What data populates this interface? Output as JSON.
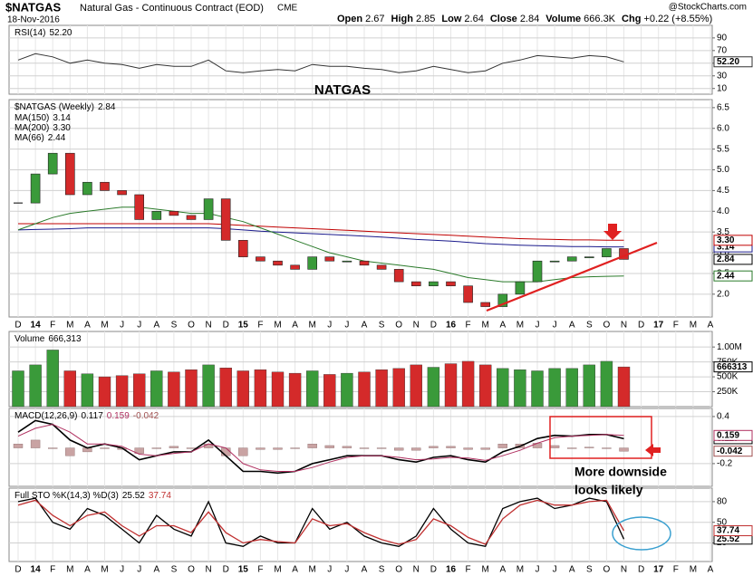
{
  "header": {
    "symbol": "$NATGAS",
    "name": "Natural Gas - Continuous Contract (EOD)",
    "exchange": "CME",
    "date": "18-Nov-2016",
    "source": "@StockCharts.com",
    "quote": [
      {
        "label": "Open",
        "value": 2.67
      },
      {
        "label": "High",
        "value": 2.85
      },
      {
        "label": "Low",
        "value": 2.64
      },
      {
        "label": "Close",
        "value": 2.84
      },
      {
        "label": "Volume",
        "value": "666.3K"
      },
      {
        "label": "Chg",
        "value": "+0.22 (+8.55%)"
      }
    ]
  },
  "annotations": [
    "NATGAS",
    "More downside",
    "looks likely"
  ],
  "chart_data": [
    {
      "type": "line",
      "label": "RSI(14)",
      "last_label": "52.20",
      "color": "#333333",
      "values": [
        55,
        65,
        60,
        50,
        55,
        50,
        48,
        42,
        48,
        45,
        45,
        55,
        38,
        35,
        38,
        40,
        38,
        48,
        45,
        45,
        42,
        40,
        35,
        38,
        45,
        40,
        35,
        38,
        50,
        55,
        62,
        60,
        58,
        62,
        60,
        52.2,
        null,
        null,
        null,
        null,
        null
      ],
      "ylim": [
        1,
        107
      ],
      "yticks": [
        90,
        70,
        50,
        30,
        10
      ],
      "grid": true
    },
    {
      "type": "candlestick",
      "label": "$NATGAS (Weekly)",
      "last_label": "2.84",
      "up_color": "#3a9a3a",
      "down_color": "#d42a2a",
      "categories": [
        "D",
        "14",
        "F",
        "M",
        "A",
        "M",
        "J",
        "J",
        "A",
        "S",
        "O",
        "N",
        "D",
        "15",
        "F",
        "M",
        "A",
        "M",
        "J",
        "J",
        "A",
        "S",
        "O",
        "N",
        "D",
        "16",
        "F",
        "M",
        "A",
        "M",
        "J",
        "J",
        "A",
        "S",
        "O",
        "N",
        "D",
        "17",
        "F",
        "M",
        "A"
      ],
      "values": [
        4.2,
        4.9,
        5.4,
        4.4,
        4.7,
        4.5,
        4.4,
        3.8,
        4.0,
        3.9,
        3.8,
        4.3,
        3.3,
        2.9,
        2.8,
        2.7,
        2.6,
        2.9,
        2.8,
        2.8,
        2.7,
        2.6,
        2.3,
        2.2,
        2.3,
        2.2,
        1.8,
        1.7,
        2.0,
        2.3,
        2.8,
        2.8,
        2.9,
        2.9,
        3.1,
        2.84,
        null,
        null,
        null,
        null,
        null
      ],
      "series": [
        {
          "name": "MA(150)",
          "color": "#1a1a8c",
          "last_label": "3.14",
          "values": [
            3.55,
            3.56,
            3.57,
            3.58,
            3.6,
            3.6,
            3.6,
            3.6,
            3.6,
            3.6,
            3.6,
            3.6,
            3.58,
            3.55,
            3.52,
            3.5,
            3.48,
            3.46,
            3.44,
            3.42,
            3.4,
            3.38,
            3.35,
            3.32,
            3.3,
            3.28,
            3.25,
            3.22,
            3.2,
            3.18,
            3.17,
            3.16,
            3.15,
            3.15,
            3.14,
            3.14,
            null,
            null,
            null,
            null,
            null
          ]
        },
        {
          "name": "MA(200)",
          "color": "#c00000",
          "last_label": "3.30",
          "values": [
            3.7,
            3.7,
            3.7,
            3.7,
            3.7,
            3.7,
            3.7,
            3.7,
            3.7,
            3.7,
            3.7,
            3.7,
            3.68,
            3.66,
            3.64,
            3.62,
            3.6,
            3.58,
            3.56,
            3.54,
            3.52,
            3.5,
            3.48,
            3.46,
            3.44,
            3.42,
            3.4,
            3.38,
            3.36,
            3.34,
            3.33,
            3.32,
            3.31,
            3.31,
            3.3,
            3.3,
            null,
            null,
            null,
            null,
            null
          ]
        },
        {
          "name": "MA(66)",
          "color": "#2a7a2a",
          "last_label": "2.44",
          "values": [
            3.55,
            3.7,
            3.85,
            3.95,
            4.0,
            4.05,
            4.1,
            4.1,
            4.05,
            4.0,
            3.95,
            3.95,
            3.85,
            3.75,
            3.6,
            3.45,
            3.3,
            3.15,
            3.0,
            2.9,
            2.8,
            2.75,
            2.7,
            2.65,
            2.6,
            2.5,
            2.4,
            2.35,
            2.3,
            2.3,
            2.3,
            2.35,
            2.4,
            2.42,
            2.43,
            2.44,
            null,
            null,
            null,
            null,
            null
          ]
        }
      ],
      "ylim": [
        1.45,
        6.65
      ],
      "yticks": [
        6.5,
        {
          "value": 6,
          "label": "6.0"
        },
        5.5,
        {
          "value": 5,
          "label": "5.0"
        },
        4.5,
        {
          "value": 4,
          "label": "4.0"
        },
        3.5,
        {
          "value": 3,
          "label": "3.0"
        },
        2.5,
        {
          "value": 2,
          "label": "2.0"
        }
      ],
      "grid": true
    },
    {
      "type": "bar",
      "label": "Volume",
      "last_label": "666,313",
      "axis_last_label": "666313",
      "values": [
        600000,
        700000,
        950000,
        600000,
        550000,
        500000,
        520000,
        550000,
        600000,
        580000,
        620000,
        700000,
        650000,
        600000,
        620000,
        580000,
        560000,
        600000,
        540000,
        560000,
        580000,
        620000,
        640000,
        700000,
        660000,
        720000,
        760000,
        700000,
        640000,
        620000,
        600000,
        640000,
        640000,
        700000,
        760000,
        666313,
        null,
        null,
        null,
        null,
        null
      ],
      "ylim": [
        0,
        1230000
      ],
      "yticks": [
        {
          "value": 1000000,
          "label": "1.00M"
        },
        {
          "value": 750000,
          "label": "750K"
        },
        {
          "value": 500000,
          "label": "500K"
        },
        {
          "value": 250000,
          "label": "250K"
        }
      ],
      "grid": true
    },
    {
      "type": "macd",
      "label": "MACD(12,26,9)",
      "histogram_label": "-0.042",
      "histogram_color": "#c9a3a3",
      "series": [
        {
          "color": "#000000",
          "last_label": "0.117",
          "values": [
            0.2,
            0.35,
            0.3,
            0.1,
            0.0,
            0.05,
            0.0,
            -0.15,
            -0.1,
            -0.05,
            -0.05,
            0.1,
            -0.1,
            -0.3,
            -0.3,
            -0.32,
            -0.3,
            -0.2,
            -0.15,
            -0.1,
            -0.1,
            -0.1,
            -0.15,
            -0.18,
            -0.12,
            -0.1,
            -0.15,
            -0.18,
            -0.05,
            0.02,
            0.12,
            0.16,
            0.15,
            0.17,
            0.17,
            0.117,
            null,
            null,
            null,
            null,
            null
          ]
        },
        {
          "color": "#b03060",
          "last_label": "0.159",
          "values": [
            0.15,
            0.25,
            0.3,
            0.2,
            0.05,
            0.05,
            0.02,
            -0.08,
            -0.1,
            -0.07,
            -0.05,
            0.05,
            0.0,
            -0.2,
            -0.28,
            -0.3,
            -0.3,
            -0.25,
            -0.18,
            -0.12,
            -0.1,
            -0.1,
            -0.12,
            -0.15,
            -0.14,
            -0.12,
            -0.13,
            -0.16,
            -0.1,
            -0.03,
            0.06,
            0.13,
            0.15,
            0.16,
            0.17,
            0.159,
            null,
            null,
            null,
            null,
            null
          ]
        }
      ],
      "ylim": [
        -0.49,
        0.48
      ],
      "yticks": [
        0.4,
        -0.2
      ],
      "grid": true
    },
    {
      "type": "line",
      "label": "Full STO %K(14,3) %D(3)",
      "categories": [
        "D",
        "14",
        "F",
        "M",
        "A",
        "M",
        "J",
        "J",
        "A",
        "S",
        "O",
        "N",
        "D",
        "15",
        "F",
        "M",
        "A",
        "M",
        "J",
        "J",
        "A",
        "S",
        "O",
        "N",
        "D",
        "16",
        "F",
        "M",
        "A",
        "M",
        "J",
        "J",
        "A",
        "S",
        "O",
        "N",
        "D",
        "17",
        "F",
        "M",
        "A"
      ],
      "series": [
        {
          "color": "#000000",
          "last_label": "25.52",
          "values": [
            80,
            85,
            50,
            40,
            70,
            60,
            40,
            20,
            60,
            40,
            30,
            80,
            20,
            15,
            30,
            20,
            20,
            70,
            40,
            50,
            30,
            20,
            15,
            30,
            70,
            40,
            20,
            15,
            70,
            80,
            85,
            70,
            75,
            85,
            80,
            25.52,
            null,
            null,
            null,
            null,
            null
          ]
        },
        {
          "color": "#c03030",
          "last_label": "37.74",
          "values": [
            75,
            82,
            60,
            45,
            60,
            65,
            45,
            30,
            45,
            45,
            35,
            65,
            35,
            20,
            25,
            22,
            20,
            55,
            45,
            48,
            35,
            25,
            18,
            25,
            55,
            45,
            28,
            18,
            55,
            75,
            82,
            75,
            75,
            80,
            82,
            37.74,
            null,
            null,
            null,
            null,
            null
          ]
        }
      ],
      "ylim": [
        -7,
        97
      ],
      "yticks": [
        80,
        50,
        20
      ],
      "grid": true
    }
  ]
}
